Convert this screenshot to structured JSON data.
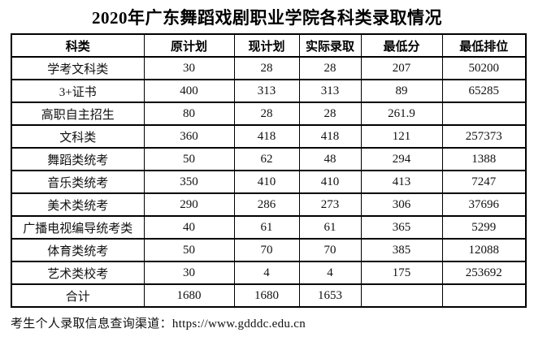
{
  "page": {
    "background_color": "#ffffff",
    "text_color": "#111111",
    "border_color": "#000000"
  },
  "title": "2020年广东舞蹈戏剧职业学院各科类录取情况",
  "table": {
    "columns": [
      "科类",
      "原计划",
      "现计划",
      "实际录取",
      "最低分",
      "最低排位"
    ],
    "rows": [
      {
        "category": "学考文科类",
        "values": [
          "30",
          "28",
          "28",
          "207",
          "50200"
        ]
      },
      {
        "category": "3+证书",
        "values": [
          "400",
          "313",
          "313",
          "89",
          "65285"
        ]
      },
      {
        "category": "高职自主招生",
        "values": [
          "80",
          "28",
          "28",
          "261.9",
          ""
        ]
      },
      {
        "category": "文科类",
        "values": [
          "360",
          "418",
          "418",
          "121",
          "257373"
        ]
      },
      {
        "category": "舞蹈类统考",
        "values": [
          "50",
          "62",
          "48",
          "294",
          "1388"
        ]
      },
      {
        "category": "音乐类统考",
        "values": [
          "350",
          "410",
          "410",
          "413",
          "7247"
        ]
      },
      {
        "category": "美术类统考",
        "values": [
          "290",
          "286",
          "273",
          "306",
          "37696"
        ]
      },
      {
        "category": "广播电视编导统考类",
        "values": [
          "40",
          "61",
          "61",
          "365",
          "5299"
        ]
      },
      {
        "category": "体育类统考",
        "values": [
          "50",
          "70",
          "70",
          "385",
          "12088"
        ]
      },
      {
        "category": "艺术类校考",
        "values": [
          "30",
          "4",
          "4",
          "175",
          "253692"
        ]
      },
      {
        "category": "合计",
        "values": [
          "1680",
          "1680",
          "1653",
          "",
          ""
        ]
      }
    ]
  },
  "footer": {
    "text": "考生个人录取信息查询渠道：https://www.gdddc.edu.cn"
  }
}
